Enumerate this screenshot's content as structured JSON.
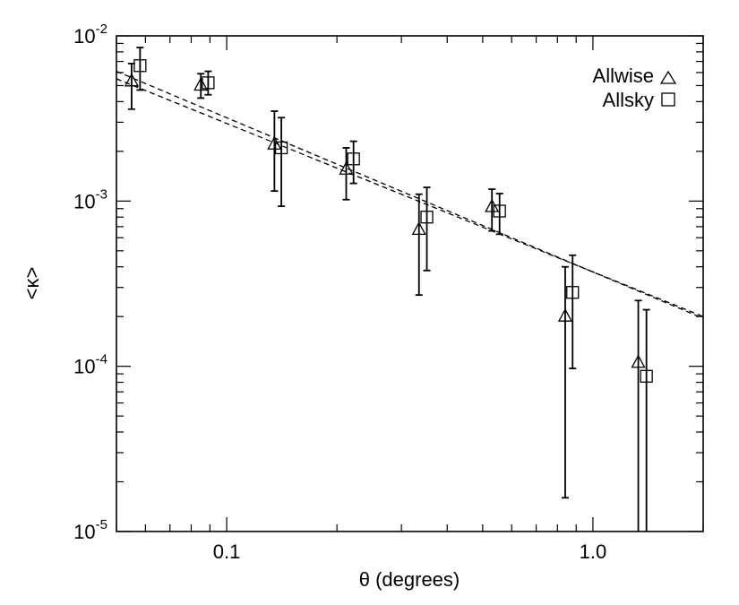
{
  "chart_data": {
    "type": "scatter",
    "title": "",
    "xlabel": "θ (degrees)",
    "ylabel": "<κ>",
    "xscale": "log",
    "yscale": "log",
    "xlim": [
      0.05,
      2.0
    ],
    "ylim": [
      1e-05,
      0.01
    ],
    "grid": false,
    "legend_position": "top-right",
    "x_ticks": [
      {
        "value": 0.1,
        "label": "0.1"
      },
      {
        "value": 1.0,
        "label": "1.0"
      }
    ],
    "y_ticks": [
      {
        "value": 1e-05,
        "base": "10",
        "exp": "-5"
      },
      {
        "value": 0.0001,
        "base": "10",
        "exp": "-4"
      },
      {
        "value": 0.001,
        "base": "10",
        "exp": "-3"
      },
      {
        "value": 0.01,
        "base": "10",
        "exp": "-2"
      }
    ],
    "series": [
      {
        "name": "Allwise",
        "marker": "triangle",
        "points": [
          {
            "x": 0.055,
            "y": 0.0053,
            "ylo": 0.0036,
            "yhi": 0.0068
          },
          {
            "x": 0.085,
            "y": 0.005,
            "ylo": 0.0042,
            "yhi": 0.0059
          },
          {
            "x": 0.135,
            "y": 0.0022,
            "ylo": 0.00115,
            "yhi": 0.0035
          },
          {
            "x": 0.212,
            "y": 0.00155,
            "ylo": 0.00102,
            "yhi": 0.0021
          },
          {
            "x": 0.335,
            "y": 0.00067,
            "ylo": 0.00027,
            "yhi": 0.0011
          },
          {
            "x": 0.53,
            "y": 0.00092,
            "ylo": 0.00066,
            "yhi": 0.00118
          },
          {
            "x": 0.84,
            "y": 0.0002,
            "ylo": 1.6e-05,
            "yhi": 0.0004
          },
          {
            "x": 1.33,
            "y": 0.000105,
            "ylo": 1e-06,
            "yhi": 0.00025
          }
        ]
      },
      {
        "name": "Allsky",
        "marker": "square",
        "points": [
          {
            "x": 0.058,
            "y": 0.0066,
            "ylo": 0.0047,
            "yhi": 0.0085
          },
          {
            "x": 0.089,
            "y": 0.0052,
            "ylo": 0.0044,
            "yhi": 0.0061
          },
          {
            "x": 0.141,
            "y": 0.0021,
            "ylo": 0.00093,
            "yhi": 0.0032
          },
          {
            "x": 0.222,
            "y": 0.0018,
            "ylo": 0.00128,
            "yhi": 0.0023
          },
          {
            "x": 0.352,
            "y": 0.0008,
            "ylo": 0.00038,
            "yhi": 0.00121
          },
          {
            "x": 0.556,
            "y": 0.00087,
            "ylo": 0.00063,
            "yhi": 0.00111
          },
          {
            "x": 0.88,
            "y": 0.00028,
            "ylo": 9.7e-05,
            "yhi": 0.00047
          },
          {
            "x": 1.4,
            "y": 8.7e-05,
            "ylo": 1e-06,
            "yhi": 0.00022
          }
        ]
      }
    ],
    "fit_lines": [
      {
        "style": "dashed",
        "x": [
          0.05,
          2.0
        ],
        "y": [
          0.0061,
          0.000195
        ]
      },
      {
        "style": "dashed",
        "x": [
          0.05,
          2.0
        ],
        "y": [
          0.0055,
          0.0002
        ]
      }
    ],
    "colors": {
      "ink": "#000000",
      "background": "#ffffff"
    }
  }
}
